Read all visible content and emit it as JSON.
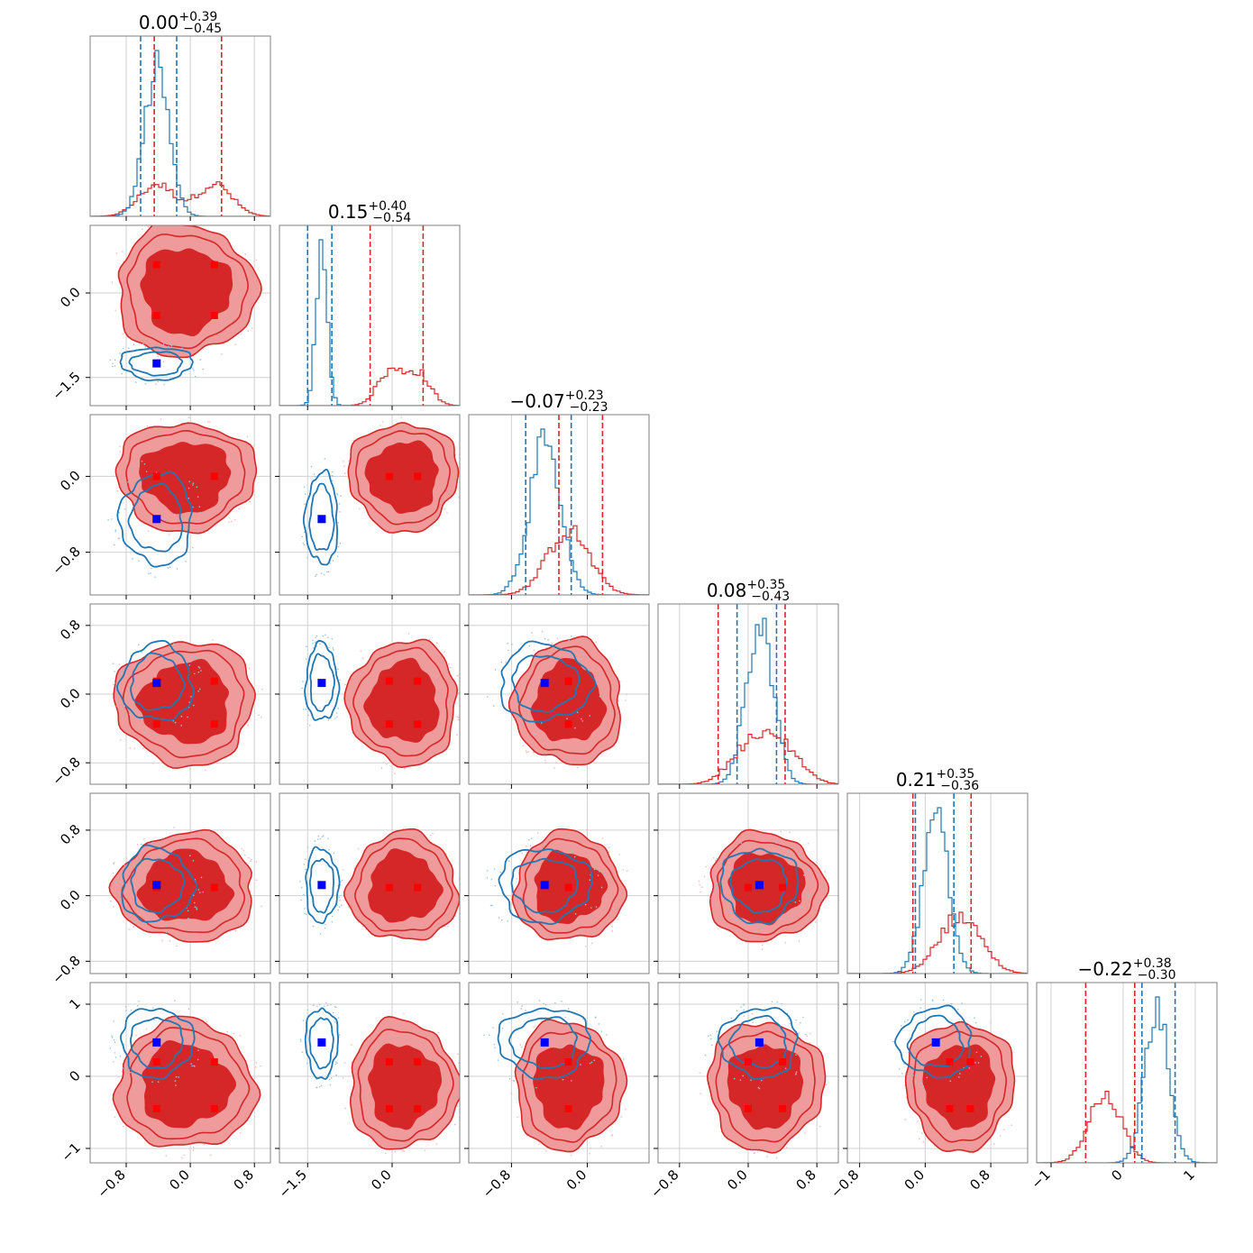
{
  "chart_data": {
    "type": "corner",
    "dims": 6,
    "colors": {
      "red": "#d62728",
      "blue": "#1f77b4",
      "red_fill": "#ef9a9b",
      "red_core": "#d62728",
      "grid": "#d0d0d0",
      "frame": "#808080"
    },
    "titles": [
      {
        "main": "0.00",
        "plus": "+0.39",
        "minus": "−0.45"
      },
      {
        "main": "0.15",
        "plus": "+0.40",
        "minus": "−0.54"
      },
      {
        "main": "−0.07",
        "plus": "+0.23",
        "minus": "−0.23"
      },
      {
        "main": "0.08",
        "plus": "+0.35",
        "minus": "−0.43"
      },
      {
        "main": "0.21",
        "plus": "+0.35",
        "minus": "−0.36"
      },
      {
        "main": "−0.22",
        "plus": "+0.38",
        "minus": "−0.30"
      }
    ],
    "axes": [
      {
        "range": [
          -1.25,
          1.0
        ],
        "ticks": [
          -0.8,
          0.0,
          0.8
        ],
        "tick_labels": [
          "−0.8",
          "0.0",
          "0.8"
        ]
      },
      {
        "range": [
          -2.0,
          1.2
        ],
        "ticks": [
          -1.5,
          0.0
        ],
        "tick_labels": [
          "−1.5",
          "0.0"
        ]
      },
      {
        "range": [
          -1.25,
          0.65
        ],
        "ticks": [
          -0.8,
          0.0
        ],
        "tick_labels": [
          "−0.8",
          "0.0"
        ]
      },
      {
        "range": [
          -1.05,
          1.05
        ],
        "ticks": [
          -0.8,
          0.0,
          0.8
        ],
        "tick_labels": [
          "−0.8",
          "0.0",
          "0.8"
        ]
      },
      {
        "range": [
          -0.95,
          1.25
        ],
        "ticks": [
          -0.8,
          0.0,
          0.8
        ],
        "tick_labels": [
          "−0.8",
          "0.0",
          "0.8"
        ]
      },
      {
        "range": [
          -1.2,
          1.3
        ],
        "ticks": [
          -1,
          0,
          1
        ],
        "tick_labels": [
          "−1",
          "0",
          "1"
        ]
      }
    ],
    "red_modes": [
      [
        -0.42,
        -0.15,
        0.3,
        0.3
      ],
      [
        0.45,
        0.5,
        -0.05,
        -0.4
      ],
      [
        -0.2,
        0.0,
        -0.2,
        0.0
      ],
      [
        0.4,
        0.15,
        0.0,
        -0.35
      ],
      [
        0.55,
        0.1,
        0.3,
        0.1
      ],
      [
        -0.25,
        0.2,
        -0.25,
        -0.45
      ]
    ],
    "blue_point": [
      -0.42,
      -1.25,
      -0.45,
      0.13,
      0.13,
      0.47
    ],
    "blue_width": [
      0.28,
      0.18,
      0.3,
      0.28,
      0.28,
      0.3
    ],
    "red_quantiles": [
      [
        -0.45,
        0.39
      ],
      [
        -0.39,
        0.55
      ],
      [
        -0.3,
        0.16
      ],
      [
        -0.35,
        0.43
      ],
      [
        -0.15,
        0.56
      ],
      [
        -0.52,
        0.16
      ]
    ],
    "blue_quantiles": [
      [
        -0.62,
        -0.17
      ],
      [
        -1.5,
        -1.07
      ],
      [
        -0.65,
        -0.17
      ],
      [
        -0.13,
        0.33
      ],
      [
        -0.12,
        0.35
      ],
      [
        0.26,
        0.72
      ]
    ]
  }
}
